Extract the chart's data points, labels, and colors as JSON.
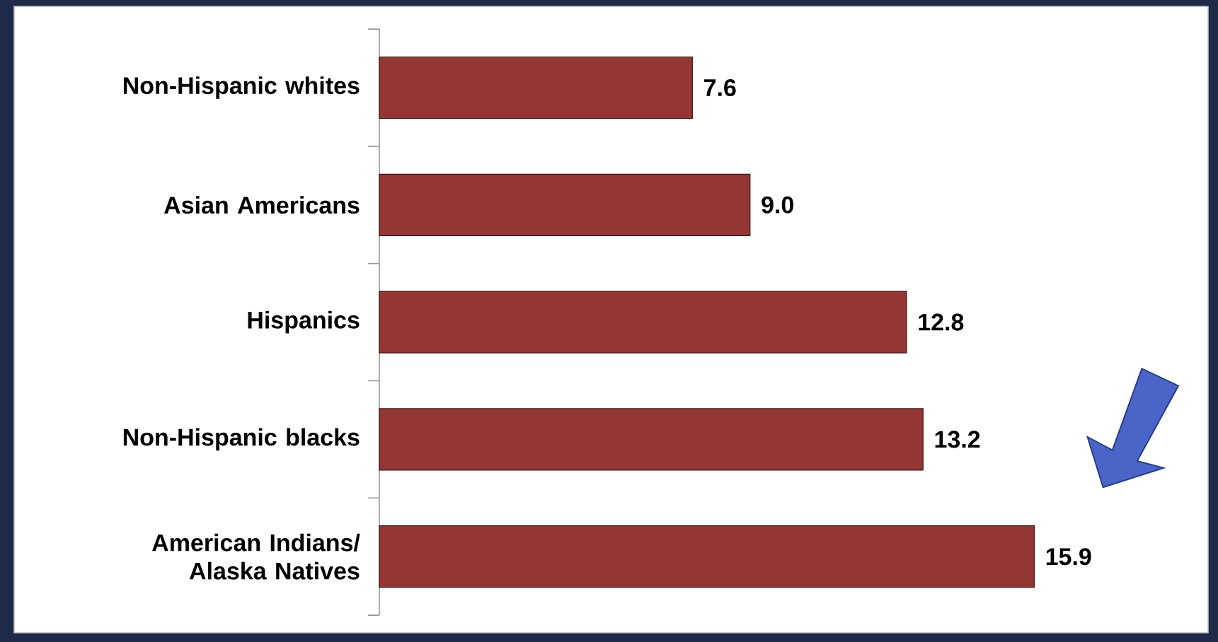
{
  "chart_data": {
    "type": "bar",
    "orientation": "horizontal",
    "categories": [
      "Non-Hispanic whites",
      "Asian Americans",
      "Hispanics",
      "Non-Hispanic blacks",
      "American Indians/ Alaska Natives"
    ],
    "values": [
      7.6,
      9.0,
      12.8,
      13.2,
      15.9
    ],
    "value_labels": [
      "7.6",
      "9.0",
      "12.8",
      "13.2",
      "15.9"
    ],
    "color": "#943634"
  }
}
